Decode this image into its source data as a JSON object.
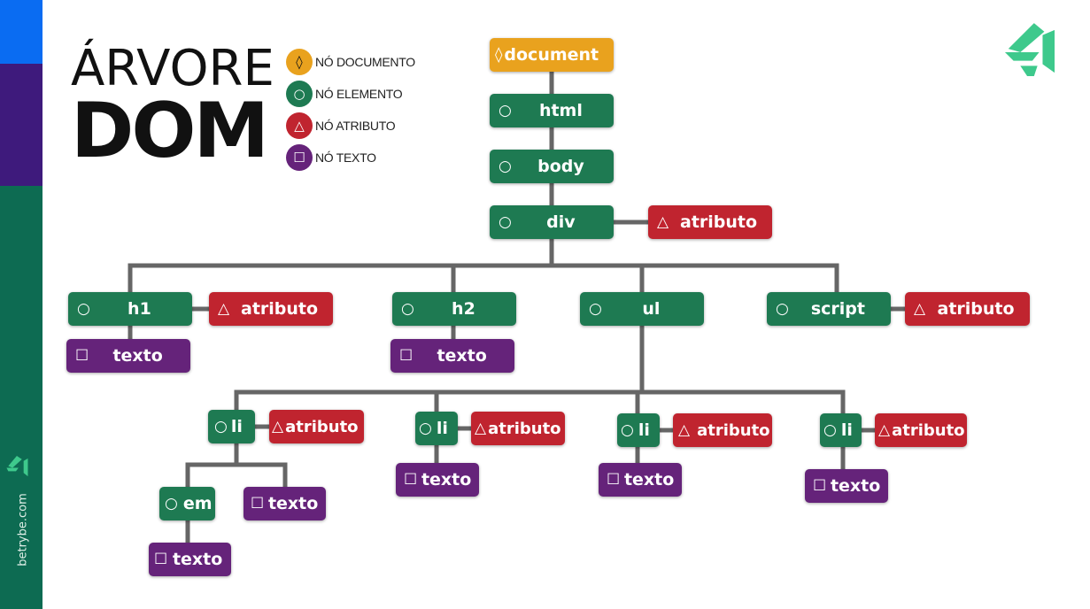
{
  "title": {
    "line1": "ÁRVORE",
    "line2": "DOM"
  },
  "legend": [
    {
      "label": "NÓ DOCUMENTO",
      "icon": "◊",
      "color": "#e9a21e"
    },
    {
      "label": "NÓ ELEMENTO",
      "icon": "○",
      "color": "#1e7a52"
    },
    {
      "label": "NÓ ATRIBUTO",
      "icon": "△",
      "color": "#c0242f"
    },
    {
      "label": "NÓ TEXTO",
      "icon": "☐",
      "color": "#65237a"
    }
  ],
  "colors": {
    "document": "#e9a21e",
    "element": "#1e7a52",
    "attribute": "#c0242f",
    "text": "#65237a",
    "stripe_top": "#0a6cf2",
    "stripe_mid": "#3e1a7c",
    "stripe_bottom": "#0d6b52",
    "connector": "#666666"
  },
  "icons": {
    "document": "◊",
    "element": "○",
    "attribute": "△",
    "text": "☐"
  },
  "nodes": {
    "document": "document",
    "html": "html",
    "body": "body",
    "div": "div",
    "div_attr": "atributo",
    "h1": "h1",
    "h1_attr": "atributo",
    "h1_text": "texto",
    "h2": "h2",
    "h2_text": "texto",
    "ul": "ul",
    "script": "script",
    "script_attr": "atributo",
    "li1": "li",
    "li1_attr": "atributo",
    "li2": "li",
    "li2_attr": "atributo",
    "li2_text": "texto",
    "li3": "li",
    "li3_attr": "atributo",
    "li3_text": "texto",
    "li4": "li",
    "li4_attr": "atributo",
    "li4_text": "texto",
    "em": "em",
    "em_text": "texto",
    "li1_text": "texto"
  },
  "brand": {
    "site": "betrybe.com",
    "logo_icon": "trybe-logo-icon"
  }
}
